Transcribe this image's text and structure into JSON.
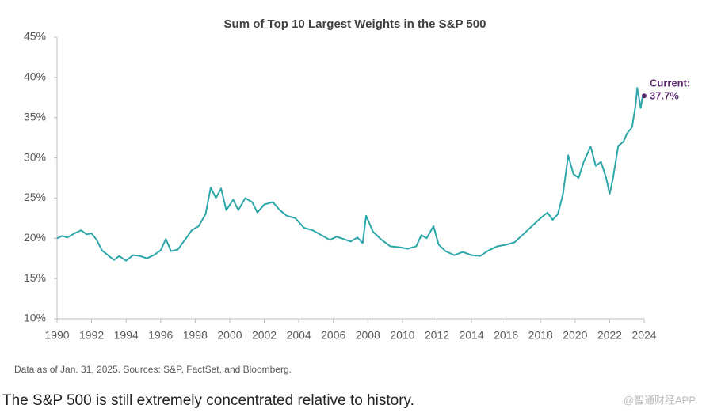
{
  "chart_data": {
    "type": "line",
    "title": "Sum of Top 10 Largest Weights in the S&P 500",
    "x": [
      1990.0,
      1990.3,
      1990.6,
      1991.0,
      1991.4,
      1991.7,
      1992.0,
      1992.3,
      1992.6,
      1993.0,
      1993.3,
      1993.6,
      1994.0,
      1994.4,
      1994.8,
      1995.2,
      1995.6,
      1996.0,
      1996.3,
      1996.6,
      1997.0,
      1997.4,
      1997.8,
      1998.2,
      1998.6,
      1998.9,
      1999.2,
      1999.5,
      1999.8,
      2000.2,
      2000.5,
      2000.9,
      2001.3,
      2001.6,
      2002.0,
      2002.5,
      2002.9,
      2003.3,
      2003.8,
      2004.3,
      2004.8,
      2005.3,
      2005.8,
      2006.2,
      2006.6,
      2007.0,
      2007.4,
      2007.7,
      2007.9,
      2008.3,
      2008.8,
      2009.3,
      2009.8,
      2010.3,
      2010.8,
      2011.1,
      2011.4,
      2011.8,
      2012.1,
      2012.5,
      2013.0,
      2013.5,
      2014.0,
      2014.5,
      2015.0,
      2015.5,
      2016.0,
      2016.5,
      2017.0,
      2017.5,
      2018.0,
      2018.4,
      2018.7,
      2019.0,
      2019.3,
      2019.6,
      2019.9,
      2020.2,
      2020.5,
      2020.9,
      2021.2,
      2021.5,
      2021.8,
      2022.0,
      2022.2,
      2022.5,
      2022.8,
      2023.0,
      2023.3,
      2023.5,
      2023.6,
      2023.8,
      2023.9,
      2024.0
    ],
    "series": [
      {
        "color": "#2ea7aa",
        "values": [
          20.0,
          20.3,
          20.1,
          20.6,
          21.0,
          20.5,
          20.6,
          19.8,
          18.5,
          17.8,
          17.3,
          17.8,
          17.2,
          17.9,
          17.8,
          17.5,
          17.9,
          18.5,
          19.9,
          18.4,
          18.6,
          19.8,
          21.0,
          21.5,
          23.0,
          26.3,
          25.0,
          26.2,
          23.5,
          24.8,
          23.5,
          25.0,
          24.5,
          23.2,
          24.2,
          24.5,
          23.5,
          22.8,
          22.5,
          21.3,
          21.0,
          20.4,
          19.8,
          20.2,
          19.9,
          19.6,
          20.1,
          19.4,
          22.8,
          20.8,
          19.8,
          19.0,
          18.9,
          18.7,
          19.0,
          20.4,
          20.0,
          21.5,
          19.2,
          18.4,
          17.9,
          18.3,
          17.9,
          17.8,
          18.5,
          19.0,
          19.2,
          19.5,
          20.5,
          21.5,
          22.5,
          23.2,
          22.3,
          23.0,
          25.5,
          30.3,
          28.0,
          27.5,
          29.5,
          31.4,
          29.0,
          29.5,
          27.5,
          25.5,
          27.5,
          31.5,
          32.0,
          33.0,
          33.8,
          36.5,
          38.7,
          36.2,
          37.5,
          37.7
        ]
      }
    ],
    "current": {
      "label": "Current:",
      "value": 37.7,
      "value_label": "37.7%",
      "color": "#5b2a6e"
    },
    "xlim": [
      1990,
      2024
    ],
    "xticks": [
      1990,
      1992,
      1994,
      1996,
      1998,
      2000,
      2002,
      2004,
      2006,
      2008,
      2010,
      2012,
      2014,
      2016,
      2018,
      2020,
      2022,
      2024
    ],
    "ylim": [
      10,
      45
    ],
    "yticks": [
      {
        "value": 10,
        "label": "10%"
      },
      {
        "value": 15,
        "label": "15%"
      },
      {
        "value": 20,
        "label": "20%"
      },
      {
        "value": 25,
        "label": "25%"
      },
      {
        "value": 30,
        "label": "30%"
      },
      {
        "value": 35,
        "label": "35%"
      },
      {
        "value": 40,
        "label": "40%"
      },
      {
        "value": 45,
        "label": "45%"
      }
    ],
    "grid": false,
    "footnote": "Data as of Jan. 31, 2025. Sources: S&P, FactSet, and Bloomberg."
  },
  "caption": "The S&P 500 is still extremely concentrated relative to history.",
  "watermark": "@智通财经APP"
}
